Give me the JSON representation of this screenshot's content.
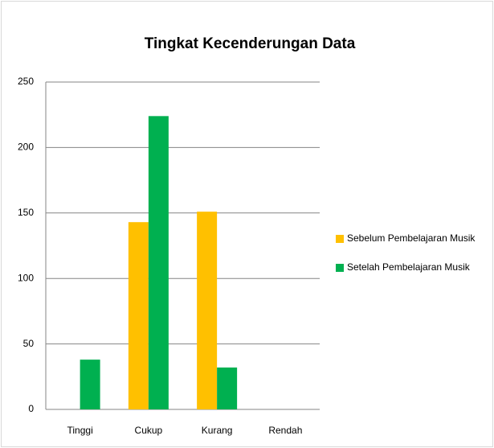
{
  "chart_data": {
    "type": "bar",
    "title": "Tingkat Kecenderungan Data",
    "categories": [
      "Tinggi",
      "Cukup",
      "Kurang",
      "Rendah"
    ],
    "series": [
      {
        "name": "Sebelum Pembelajaran Musik",
        "color": "#ffc000",
        "values": [
          0,
          143,
          151,
          0
        ]
      },
      {
        "name": "Setelah Pembelajaran Musik",
        "color": "#00b050",
        "values": [
          38,
          224,
          32,
          0
        ]
      }
    ],
    "ylim": [
      0,
      250
    ],
    "yticks": [
      0,
      50,
      100,
      150,
      200,
      250
    ],
    "grid": true,
    "legend": "right"
  }
}
